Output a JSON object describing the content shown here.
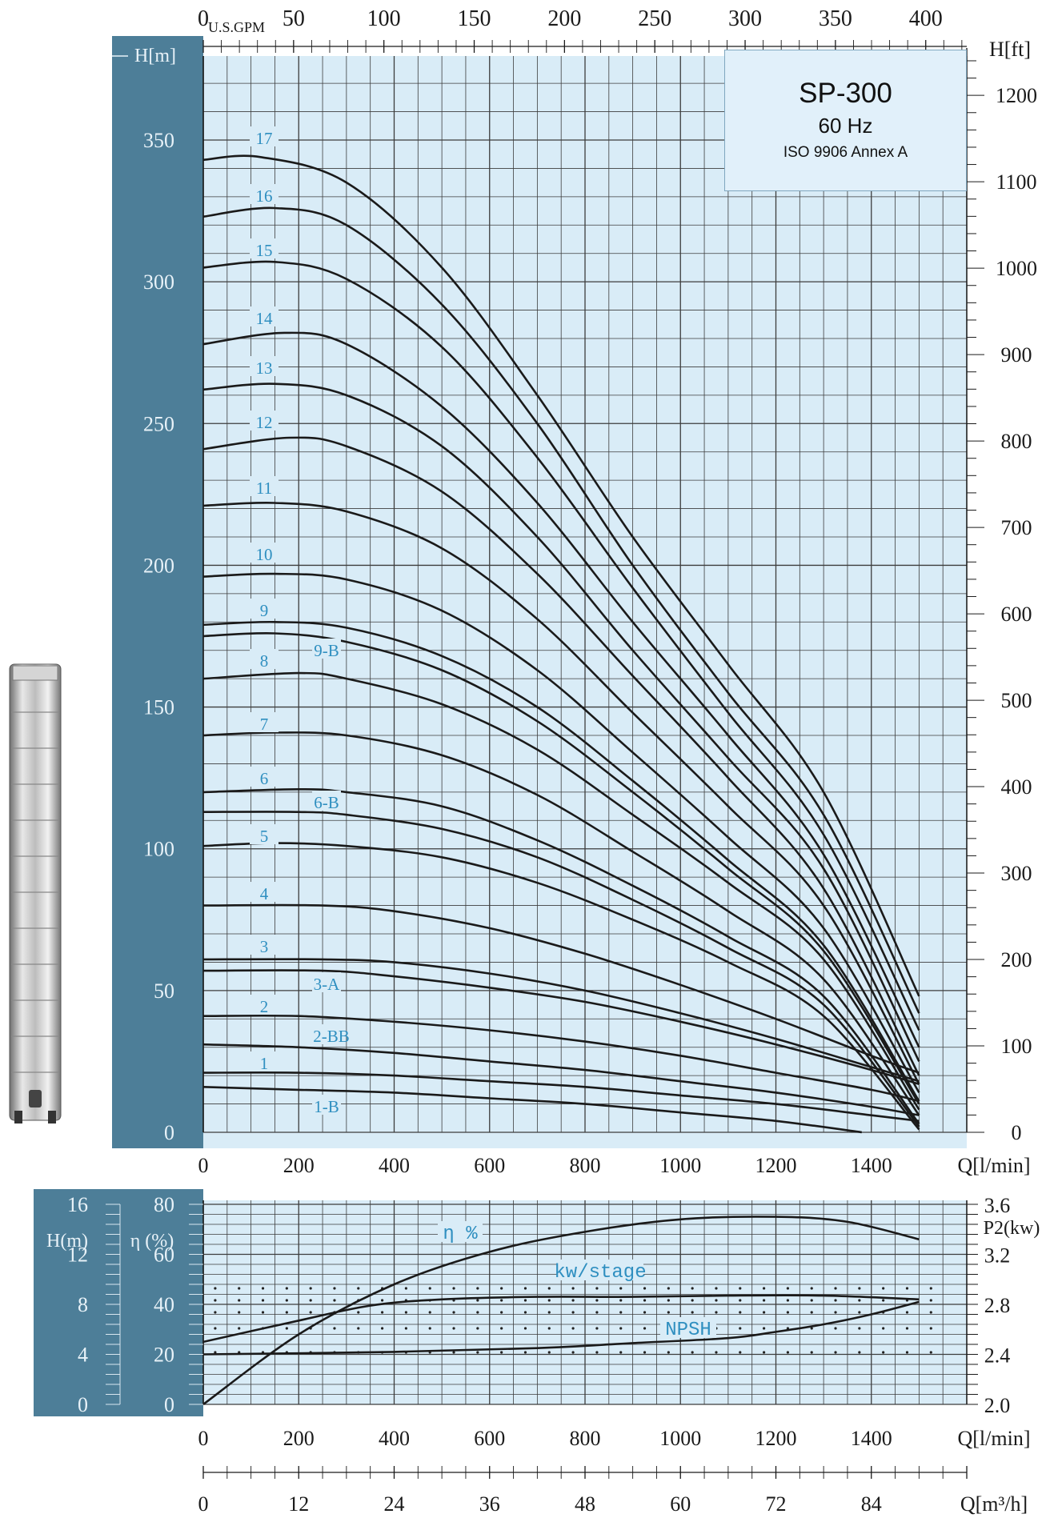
{
  "header_box": {
    "model": "SP-300",
    "frequency": "60 Hz",
    "standard": "ISO 9906 Annex A"
  },
  "colors": {
    "grid_bg": "#d9ecf7",
    "grid_line": "#3d3d3d",
    "side_panel": "#4d7e98",
    "curve": "#1a1a1a",
    "label_blue": "#2f8fc0"
  },
  "icons": [
    "pump-image"
  ],
  "chart_data": [
    {
      "type": "line",
      "title": "",
      "xlabel": "Q[l/min]",
      "ylabel": "H[m]",
      "y2label": "H[ft]",
      "x2label": "U.S.GPM",
      "xlim": [
        0,
        1600
      ],
      "ylim": [
        0,
        380
      ],
      "x_ticks": [
        "0",
        "200",
        "400",
        "600",
        "800",
        "1000",
        "1200",
        "1400"
      ],
      "y_ticks": [
        "0",
        "50",
        "100",
        "150",
        "200",
        "250",
        "300",
        "350"
      ],
      "y2_ticks": [
        "0",
        "100",
        "200",
        "300",
        "400",
        "500",
        "600",
        "700",
        "800",
        "900",
        "1000",
        "1100",
        "1200"
      ],
      "x2_ticks": [
        "0",
        "50",
        "100",
        "150",
        "200",
        "250",
        "300",
        "350",
        "400"
      ],
      "series": [
        {
          "name": "17",
          "x": [
            0,
            120,
            300,
            500,
            700,
            900,
            1100,
            1300,
            1500
          ],
          "values": [
            343,
            344,
            335,
            305,
            260,
            210,
            165,
            120,
            48
          ]
        },
        {
          "name": "16",
          "x": [
            0,
            150,
            300,
            500,
            700,
            900,
            1100,
            1300,
            1500
          ],
          "values": [
            323,
            326,
            320,
            292,
            250,
            200,
            155,
            112,
            42
          ]
        },
        {
          "name": "15",
          "x": [
            0,
            150,
            300,
            500,
            700,
            900,
            1100,
            1300,
            1500
          ],
          "values": [
            305,
            307,
            301,
            277,
            238,
            192,
            148,
            105,
            36
          ]
        },
        {
          "name": "14",
          "x": [
            0,
            170,
            300,
            500,
            700,
            900,
            1100,
            1300,
            1500
          ],
          "values": [
            278,
            282,
            278,
            256,
            222,
            180,
            140,
            98,
            30
          ]
        },
        {
          "name": "13",
          "x": [
            0,
            150,
            300,
            500,
            700,
            900,
            1100,
            1300,
            1500
          ],
          "values": [
            262,
            264,
            260,
            242,
            210,
            170,
            132,
            93,
            25
          ]
        },
        {
          "name": "12",
          "x": [
            0,
            180,
            300,
            500,
            700,
            900,
            1100,
            1300,
            1500
          ],
          "values": [
            241,
            245,
            242,
            226,
            197,
            161,
            125,
            86,
            20
          ]
        },
        {
          "name": "11",
          "x": [
            0,
            150,
            300,
            500,
            700,
            900,
            1100,
            1300,
            1500
          ],
          "values": [
            221,
            222,
            219,
            206,
            181,
            148,
            115,
            80,
            17
          ]
        },
        {
          "name": "10",
          "x": [
            0,
            150,
            300,
            500,
            700,
            900,
            1100,
            1300,
            1500
          ],
          "values": [
            196,
            197,
            195,
            184,
            163,
            134,
            104,
            72,
            14
          ]
        },
        {
          "name": "9",
          "x": [
            0,
            150,
            300,
            500,
            700,
            900,
            1100,
            1300,
            1500
          ],
          "values": [
            179,
            180,
            178,
            168,
            150,
            124,
            96,
            66,
            11
          ]
        },
        {
          "name": "9-B",
          "x": [
            0,
            150,
            300,
            500,
            700,
            900,
            1100,
            1300,
            1500
          ],
          "values": [
            175,
            176,
            173,
            163,
            145,
            120,
            93,
            64,
            10
          ]
        },
        {
          "name": "8",
          "x": [
            0,
            200,
            300,
            500,
            700,
            900,
            1100,
            1300,
            1500
          ],
          "values": [
            160,
            162,
            160,
            151,
            135,
            112,
            88,
            61,
            8
          ]
        },
        {
          "name": "7",
          "x": [
            0,
            150,
            300,
            500,
            700,
            900,
            1100,
            1300,
            1500
          ],
          "values": [
            140,
            141,
            140,
            133,
            119,
            99,
            78,
            54,
            6
          ]
        },
        {
          "name": "6",
          "x": [
            0,
            200,
            300,
            500,
            700,
            900,
            1100,
            1300,
            1500
          ],
          "values": [
            120,
            121,
            120,
            115,
            103,
            87,
            69,
            48,
            3
          ]
        },
        {
          "name": "6-B",
          "x": [
            0,
            200,
            300,
            500,
            700,
            900,
            1100,
            1300,
            1500
          ],
          "values": [
            113,
            113,
            112,
            107,
            97,
            82,
            65,
            45,
            2
          ]
        },
        {
          "name": "5",
          "x": [
            0,
            150,
            300,
            500,
            700,
            900,
            1100,
            1300,
            1500
          ],
          "values": [
            101,
            102,
            101,
            97,
            88,
            75,
            60,
            41,
            1
          ]
        },
        {
          "name": "4",
          "x": [
            0,
            250,
            400,
            600,
            800,
            1000,
            1200,
            1400,
            1500
          ],
          "values": [
            80,
            80,
            78,
            72,
            63,
            52,
            40,
            27,
            21
          ]
        },
        {
          "name": "3",
          "x": [
            0,
            250,
            400,
            600,
            800,
            1000,
            1200,
            1400,
            1500
          ],
          "values": [
            61,
            61,
            60,
            56,
            50,
            42,
            33,
            23,
            18
          ]
        },
        {
          "name": "3-A",
          "x": [
            0,
            250,
            400,
            600,
            800,
            1000,
            1200,
            1400,
            1500
          ],
          "values": [
            57,
            57,
            55,
            51,
            46,
            39,
            31,
            22,
            17
          ]
        },
        {
          "name": "2",
          "x": [
            0,
            200,
            400,
            600,
            800,
            1000,
            1200,
            1400,
            1500
          ],
          "values": [
            41,
            41,
            39,
            36,
            32,
            27,
            21,
            15,
            11
          ]
        },
        {
          "name": "2-BB",
          "x": [
            0,
            200,
            400,
            600,
            800,
            1000,
            1200,
            1400,
            1500
          ],
          "values": [
            31,
            30,
            28,
            25,
            22,
            18,
            14,
            9,
            6
          ]
        },
        {
          "name": "1",
          "x": [
            0,
            200,
            400,
            600,
            800,
            1000,
            1200,
            1400,
            1500
          ],
          "values": [
            21,
            21,
            20,
            18,
            16,
            13,
            10,
            6,
            4
          ]
        },
        {
          "name": "1-B",
          "x": [
            0,
            200,
            400,
            600,
            800,
            1000,
            1200,
            1380
          ],
          "values": [
            16,
            15,
            14,
            12,
            10,
            7,
            4,
            0
          ]
        }
      ]
    },
    {
      "type": "line",
      "title": "",
      "xlabel": "Q[l/min]",
      "x2label": "Q[m³/h]",
      "x_ticks": [
        "0",
        "200",
        "400",
        "600",
        "800",
        "1000",
        "1200",
        "1400"
      ],
      "x2_ticks": [
        "0",
        "12",
        "24",
        "36",
        "48",
        "60",
        "72",
        "84"
      ],
      "xlim": [
        0,
        1600
      ],
      "eta_axis": {
        "label": "η (%)",
        "ticks": [
          "0",
          "20",
          "40",
          "60",
          "80"
        ],
        "range": [
          0,
          80
        ]
      },
      "npsh_axis": {
        "label": "H(m)",
        "ticks": [
          "0",
          "4",
          "8",
          "12",
          "16"
        ],
        "range": [
          0,
          16
        ]
      },
      "p2_axis": {
        "label": "P2(kw)",
        "ticks": [
          "2.0",
          "2.4",
          "2.8",
          "3.2",
          "3.6"
        ],
        "range": [
          2.0,
          3.6
        ]
      },
      "series": [
        {
          "name": "η %",
          "axis": "eta",
          "x": [
            0,
            200,
            400,
            600,
            800,
            1000,
            1200,
            1350,
            1500
          ],
          "values": [
            0,
            28,
            48,
            61,
            69,
            74,
            75,
            73,
            66
          ]
        },
        {
          "name": "kw/stage",
          "axis": "p2",
          "x": [
            0,
            200,
            350,
            500,
            700,
            900,
            1100,
            1300,
            1500
          ],
          "values": [
            2.5,
            2.67,
            2.79,
            2.84,
            2.86,
            2.86,
            2.87,
            2.87,
            2.84
          ]
        },
        {
          "name": "NPSH",
          "axis": "npsh",
          "x": [
            0,
            400,
            700,
            900,
            1100,
            1200,
            1300,
            1400,
            1500
          ],
          "values": [
            4.0,
            4.2,
            4.5,
            4.9,
            5.3,
            5.8,
            6.4,
            7.2,
            8.2
          ]
        }
      ]
    }
  ]
}
